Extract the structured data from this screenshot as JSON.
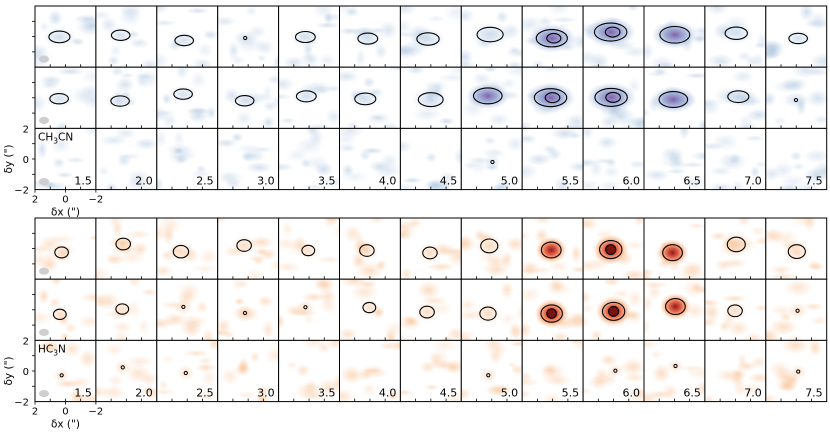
{
  "chart_data": {
    "type": "heatmap",
    "description_free": true,
    "velocity_labels": [
      "1.5",
      "2.0",
      "2.5",
      "3.0",
      "3.5",
      "4.0",
      "4.5",
      "5.0",
      "5.5",
      "6.0",
      "6.5",
      "7.0",
      "7.5"
    ],
    "axes": {
      "xlabel": "δx (\")",
      "ylabel": "δy (\")",
      "xticks": [
        "2",
        "0",
        "−2"
      ],
      "yticks": [
        "2",
        "0",
        "−2"
      ]
    },
    "blocks": [
      {
        "molecule": "CH3CN",
        "molecule_html": [
          "CH",
          "3",
          "CN"
        ],
        "colormap": "blue",
        "rows": 3,
        "peak_intensity": [
          [
            0.55,
            0.45,
            0.45,
            0.35,
            0.5,
            0.5,
            0.6,
            0.75,
            0.95,
            1.0,
            0.9,
            0.6,
            0.45
          ],
          [
            0.45,
            0.45,
            0.45,
            0.45,
            0.5,
            0.55,
            0.7,
            0.85,
            1.0,
            1.0,
            0.85,
            0.55,
            0.4
          ],
          [
            0.2,
            0.25,
            0.15,
            0.15,
            0.15,
            0.15,
            0.15,
            0.3,
            0.25,
            0.15,
            0.25,
            0.15,
            0.15
          ]
        ]
      },
      {
        "molecule": "HC3N",
        "molecule_html": [
          "HC",
          "3",
          "N"
        ],
        "colormap": "orange",
        "rows": 3,
        "peak_intensity": [
          [
            0.5,
            0.55,
            0.6,
            0.55,
            0.45,
            0.55,
            0.55,
            0.7,
            0.85,
            1.0,
            0.85,
            0.75,
            0.7
          ],
          [
            0.45,
            0.45,
            0.4,
            0.4,
            0.35,
            0.45,
            0.55,
            0.65,
            0.95,
            1.0,
            0.85,
            0.55,
            0.4
          ],
          [
            0.3,
            0.35,
            0.35,
            0.25,
            0.25,
            0.25,
            0.25,
            0.35,
            0.25,
            0.3,
            0.3,
            0.25,
            0.3
          ]
        ]
      }
    ]
  }
}
